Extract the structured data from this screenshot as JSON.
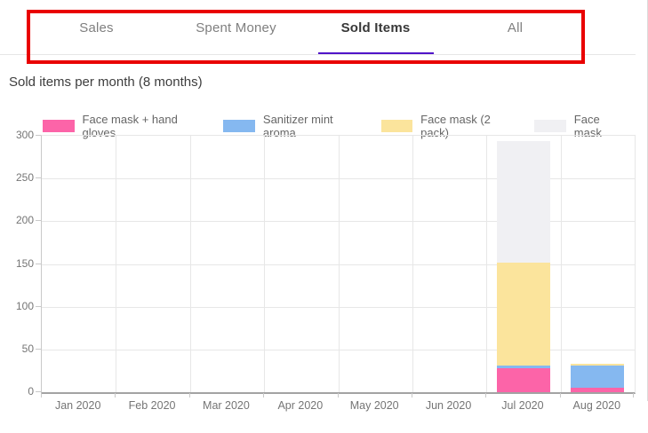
{
  "tabs": {
    "items": [
      {
        "label": "Sales",
        "active": false
      },
      {
        "label": "Spent Money",
        "active": false
      },
      {
        "label": "Sold Items",
        "active": true
      },
      {
        "label": "All",
        "active": false
      }
    ],
    "active_underline_color": "#5014c8"
  },
  "annotation": {
    "shape": "rectangle",
    "color": "#e90000",
    "target": "tab-bar"
  },
  "chart_data": {
    "type": "bar",
    "stacked": true,
    "title": "Sold items per month (8 months)",
    "xlabel": "",
    "ylabel": "",
    "categories": [
      "Jan 2020",
      "Feb 2020",
      "Mar 2020",
      "Apr 2020",
      "May 2020",
      "Jun 2020",
      "Jul 2020",
      "Aug 2020"
    ],
    "series": [
      {
        "name": "Face mask + hand gloves",
        "color": "#fc64a8",
        "values": [
          0,
          0,
          0,
          0,
          0,
          0,
          28,
          5
        ]
      },
      {
        "name": "Sanitizer mint aroma",
        "color": "#85b8f0",
        "values": [
          0,
          0,
          0,
          0,
          0,
          0,
          3,
          26
        ]
      },
      {
        "name": "Face mask (2 pack)",
        "color": "#fbe49c",
        "values": [
          0,
          0,
          0,
          0,
          0,
          0,
          121,
          2
        ]
      },
      {
        "name": "Face mask",
        "color": "#f0f0f3",
        "values": [
          0,
          0,
          0,
          0,
          0,
          0,
          142,
          0
        ]
      }
    ],
    "ylim": [
      0,
      300
    ],
    "ytick_step": 50,
    "grid": true,
    "legend_position": "top"
  }
}
